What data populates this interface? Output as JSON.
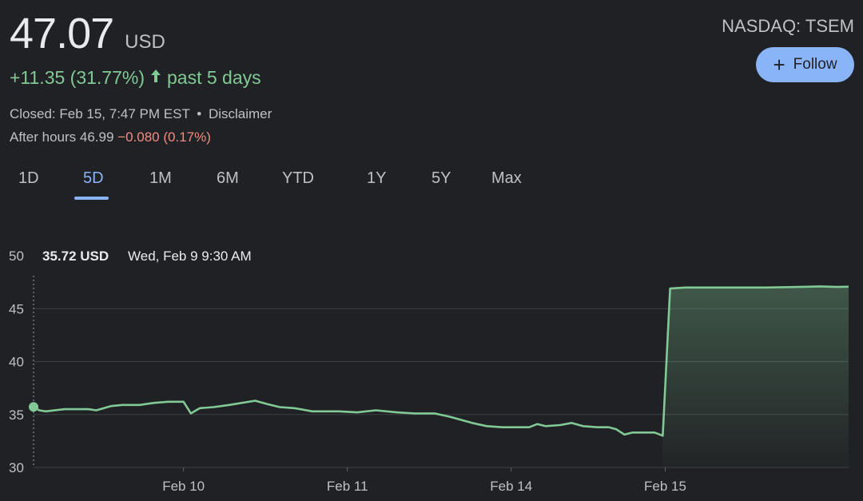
{
  "quote": {
    "price": "47.07",
    "currency": "USD",
    "change": "+11.35 (31.77%)",
    "change_arrow": "arrow-up-icon",
    "change_period": "past 5 days",
    "closed_text": "Closed: Feb 15, 7:47 PM EST",
    "separator": "•",
    "disclaimer": "Disclaimer",
    "after_hours_label": "After hours 46.99",
    "after_hours_change": "−0.080 (0.17%)",
    "ticker": "NASDAQ: TSEM"
  },
  "follow": {
    "label": "Follow",
    "icon": "plus-icon"
  },
  "tabs": [
    {
      "label": "1D"
    },
    {
      "label": "5D",
      "active": true
    },
    {
      "label": "1M"
    },
    {
      "label": "6M"
    },
    {
      "label": "YTD"
    },
    {
      "label": "1Y"
    },
    {
      "label": "5Y"
    },
    {
      "label": "Max"
    }
  ],
  "colors": {
    "background": "#202124",
    "line": "#81c995",
    "accent": "#8ab4f8",
    "negative": "#f28b82",
    "gridline": "#3c4043"
  },
  "chart_data": {
    "type": "area",
    "tooltip": {
      "value": "35.72 USD",
      "time": "Wed, Feb 9 9:30 AM"
    },
    "yticks": [
      30,
      35,
      40,
      45,
      50
    ],
    "ylim": [
      30,
      50
    ],
    "xlim": [
      0,
      100
    ],
    "xtick_labels": [
      {
        "label": "Feb 10",
        "x": 18.4
      },
      {
        "label": "Feb 11",
        "x": 38.5
      },
      {
        "label": "Feb 14",
        "x": 58.6
      },
      {
        "label": "Feb 15",
        "x": 77.5
      }
    ],
    "grid": true,
    "series": [
      {
        "points": [
          [
            0,
            35.72
          ],
          [
            0.7,
            35.4
          ],
          [
            1.5,
            35.3
          ],
          [
            3.8,
            35.5
          ],
          [
            6.7,
            35.5
          ],
          [
            7.7,
            35.4
          ],
          [
            9.5,
            35.8
          ],
          [
            10.9,
            35.9
          ],
          [
            13.0,
            35.9
          ],
          [
            14.8,
            36.1
          ],
          [
            16.5,
            36.2
          ],
          [
            18.4,
            36.2
          ],
          [
            19.3,
            35.1
          ],
          [
            20.4,
            35.6
          ],
          [
            22.1,
            35.7
          ],
          [
            24.0,
            35.9
          ],
          [
            27.2,
            36.3
          ],
          [
            28.6,
            36.0
          ],
          [
            30.2,
            35.7
          ],
          [
            32.0,
            35.6
          ],
          [
            34.2,
            35.3
          ],
          [
            37.5,
            35.3
          ],
          [
            39.7,
            35.2
          ],
          [
            42.0,
            35.4
          ],
          [
            44.6,
            35.2
          ],
          [
            46.8,
            35.1
          ],
          [
            49.2,
            35.1
          ],
          [
            51.0,
            34.8
          ],
          [
            53.8,
            34.2
          ],
          [
            55.6,
            33.9
          ],
          [
            57.5,
            33.8
          ],
          [
            59.4,
            33.8
          ],
          [
            60.8,
            33.8
          ],
          [
            61.8,
            34.1
          ],
          [
            62.8,
            33.9
          ],
          [
            64.6,
            34.0
          ],
          [
            66.0,
            34.2
          ],
          [
            67.4,
            33.9
          ],
          [
            69.2,
            33.8
          ],
          [
            70.6,
            33.8
          ],
          [
            71.5,
            33.6
          ],
          [
            72.5,
            33.1
          ],
          [
            73.5,
            33.3
          ],
          [
            76.2,
            33.3
          ],
          [
            77.2,
            33.0
          ],
          [
            78.1,
            46.9
          ],
          [
            80.0,
            47.0
          ],
          [
            85.0,
            47.0
          ],
          [
            90.0,
            47.0
          ],
          [
            94.0,
            47.05
          ],
          [
            96.5,
            47.1
          ],
          [
            98.5,
            47.05
          ],
          [
            100,
            47.07
          ]
        ]
      }
    ]
  }
}
